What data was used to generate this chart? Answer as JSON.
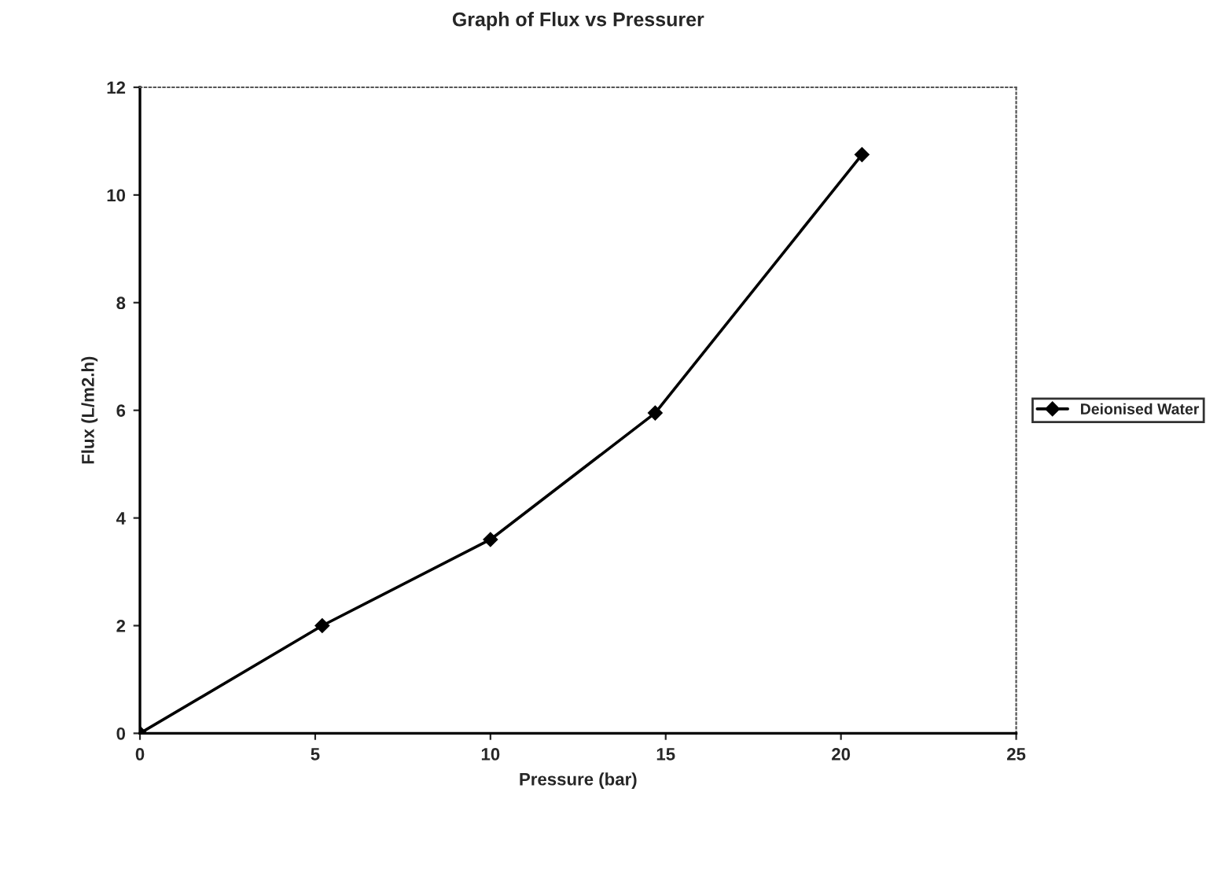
{
  "chart_data": {
    "type": "line",
    "title": "Graph of Flux vs Pressurer",
    "xlabel": "Pressure (bar)",
    "ylabel": "Flux (L/m2.h)",
    "x": [
      0,
      5.2,
      10.0,
      14.7,
      20.6
    ],
    "series": [
      {
        "name": "Deionised Water",
        "color": "#000000",
        "values": [
          0,
          2.0,
          3.6,
          5.95,
          10.75
        ]
      }
    ],
    "xlim": [
      0,
      25
    ],
    "xticks": [
      0,
      5,
      10,
      15,
      20,
      25
    ],
    "ylim": [
      0,
      12
    ],
    "yticks": [
      0,
      2,
      4,
      6,
      8,
      10,
      12
    ],
    "grid": false,
    "legend": "right",
    "marker": "diamond",
    "line_style": "solid"
  }
}
